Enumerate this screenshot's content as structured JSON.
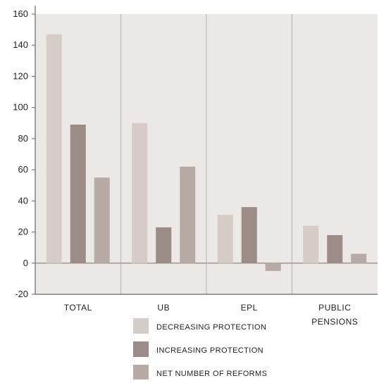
{
  "chart_data": {
    "type": "bar",
    "categories": [
      "Total",
      "UB",
      "EPL",
      "Public pensions"
    ],
    "category_labels": [
      "TOTAL",
      "UB",
      "EPL",
      "PUBLIC PENSIONS"
    ],
    "series": [
      {
        "name": "Decreasing protection",
        "label": "DECREASING PROTECTION",
        "values": [
          147,
          90,
          31,
          24
        ],
        "color": "#d6ccc8"
      },
      {
        "name": "Increasing protection",
        "label": "INCREASING PROTECTION",
        "values": [
          89,
          23,
          36,
          18
        ],
        "color": "#9b8c87"
      },
      {
        "name": "Net number of reforms",
        "label": "NET NUMBER OF REFORMS",
        "values": [
          55,
          62,
          -5,
          6
        ],
        "color": "#b8aba6"
      }
    ],
    "ylim": [
      -20,
      160
    ],
    "yticks": [
      -20,
      0,
      20,
      40,
      60,
      80,
      100,
      120,
      140,
      160
    ],
    "title": "",
    "xlabel": "",
    "ylabel": "",
    "grid": true,
    "legend_position": "bottom-center",
    "plot_background": "#ebe8e5",
    "grid_color": "#c7c2be"
  }
}
